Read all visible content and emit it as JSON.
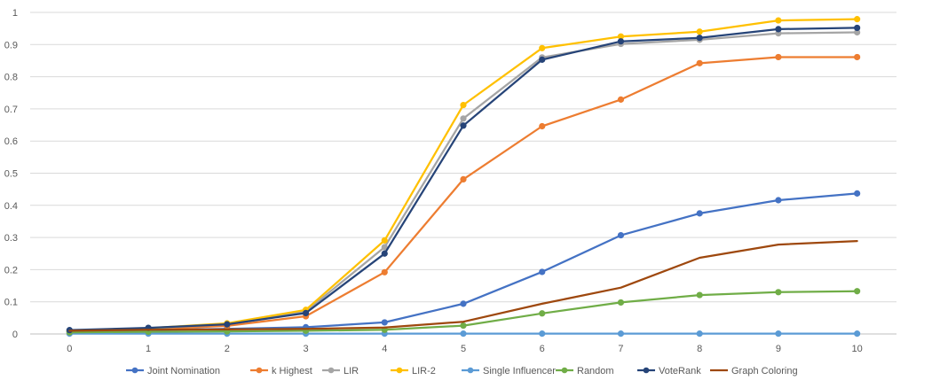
{
  "chart_data": {
    "type": "line",
    "title": "",
    "xlabel": "",
    "ylabel": "",
    "x": [
      0,
      1,
      2,
      3,
      4,
      5,
      6,
      7,
      8,
      9,
      10
    ],
    "x_tick_labels": [
      "0",
      "1",
      "2",
      "3",
      "4",
      "5",
      "6",
      "7",
      "8",
      "9",
      "10"
    ],
    "ylim": [
      0,
      1
    ],
    "y_ticks": [
      0,
      0.1,
      0.2,
      0.3,
      0.4,
      0.5,
      0.6,
      0.7,
      0.8,
      0.9,
      1
    ],
    "y_tick_labels": [
      "0",
      "0.1",
      "0.2",
      "0.3",
      "0.4",
      "0.5",
      "0.6",
      "0.7",
      "0.8",
      "0.9",
      "1"
    ],
    "grid": true,
    "legend_position": "bottom",
    "series": [
      {
        "name": "Joint Nomination",
        "color": "#4472C4",
        "markers": true,
        "values": [
          0.008,
          0.012,
          0.016,
          0.021,
          0.036,
          0.094,
          0.193,
          0.307,
          0.375,
          0.416,
          0.437
        ]
      },
      {
        "name": "k Highest",
        "color": "#ED7D31",
        "markers": true,
        "values": [
          0.008,
          0.014,
          0.025,
          0.055,
          0.192,
          0.481,
          0.646,
          0.729,
          0.842,
          0.861,
          0.861
        ]
      },
      {
        "name": "LIR",
        "color": "#A5A5A5",
        "markers": true,
        "values": [
          0.01,
          0.017,
          0.031,
          0.07,
          0.27,
          0.67,
          0.86,
          0.902,
          0.915,
          0.935,
          0.938
        ]
      },
      {
        "name": "LIR-2",
        "color": "#FFC000",
        "markers": true,
        "values": [
          0.01,
          0.018,
          0.033,
          0.075,
          0.291,
          0.712,
          0.889,
          0.925,
          0.94,
          0.975,
          0.979
        ]
      },
      {
        "name": "Single Influencer",
        "color": "#5B9BD5",
        "markers": true,
        "values": [
          0.001,
          0.001,
          0.001,
          0.001,
          0.001,
          0.001,
          0.001,
          0.001,
          0.001,
          0.001,
          0.001
        ]
      },
      {
        "name": "Random",
        "color": "#70AD47",
        "markers": true,
        "values": [
          0.005,
          0.007,
          0.008,
          0.01,
          0.013,
          0.026,
          0.064,
          0.098,
          0.121,
          0.13,
          0.133
        ]
      },
      {
        "name": "VoteRank",
        "color": "#264478",
        "markers": true,
        "values": [
          0.012,
          0.019,
          0.03,
          0.065,
          0.25,
          0.648,
          0.853,
          0.91,
          0.921,
          0.948,
          0.952
        ]
      },
      {
        "name": "Graph Coloring",
        "color": "#9E480E",
        "markers": false,
        "values": [
          0.01,
          0.013,
          0.014,
          0.016,
          0.02,
          0.038,
          0.094,
          0.144,
          0.237,
          0.278,
          0.289
        ]
      }
    ]
  }
}
